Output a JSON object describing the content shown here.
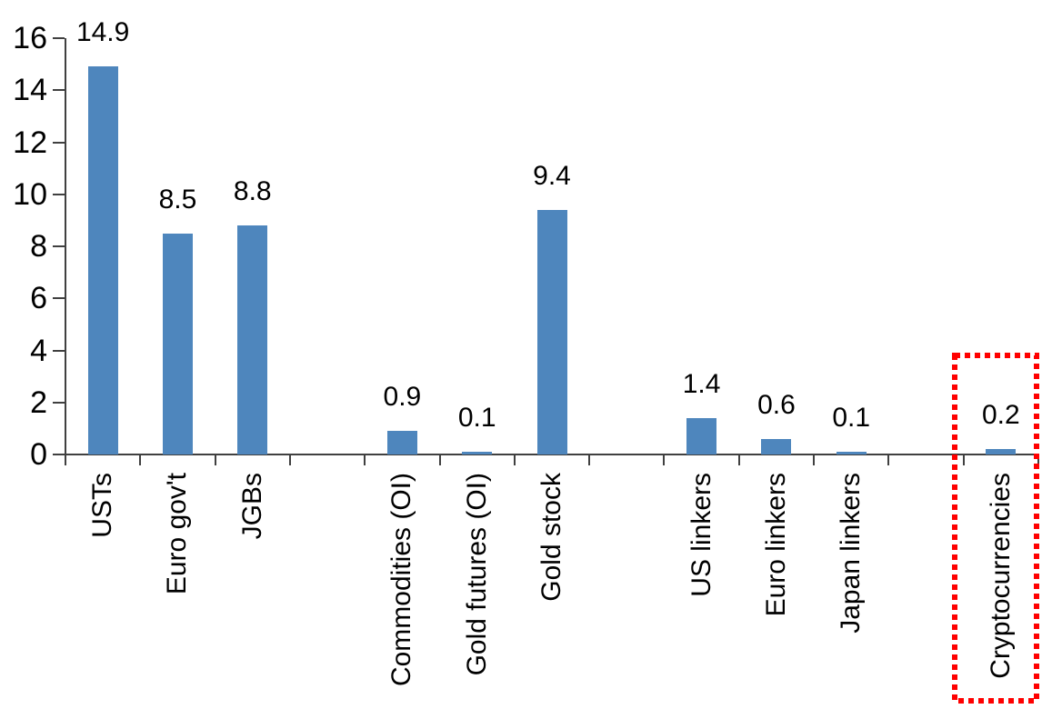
{
  "chart_data": {
    "type": "bar",
    "title": "",
    "xlabel": "",
    "ylabel": "",
    "categories": [
      "USTs",
      "Euro gov't",
      "JGBs",
      "Commodities (OI)",
      "Gold futures (OI)",
      "Gold stock",
      "US linkers",
      "Euro linkers",
      "Japan linkers",
      "Cryptocurrencies"
    ],
    "values": [
      14.9,
      8.5,
      8.8,
      0.9,
      0.1,
      9.4,
      1.4,
      0.6,
      0.1,
      0.2
    ],
    "data_labels": [
      "14.9",
      "8.5",
      "8.8",
      "0.9",
      "0.1",
      "9.4",
      "1.4",
      "0.6",
      "0.1",
      "0.2"
    ],
    "slots": [
      0,
      1,
      2,
      4,
      5,
      6,
      8,
      9,
      10,
      12
    ],
    "total_slots": 13,
    "ylim": [
      0,
      16
    ],
    "yticks": [
      0,
      2,
      4,
      6,
      8,
      10,
      12,
      14,
      16
    ],
    "grid": false,
    "legend": "none",
    "bar_color": "#4E86BD",
    "axis_color": "#404040",
    "text_color": "#000000",
    "highlight": {
      "category": "Cryptocurrencies",
      "style": "red-dotted-rectangle",
      "color": "#FF0000"
    }
  }
}
